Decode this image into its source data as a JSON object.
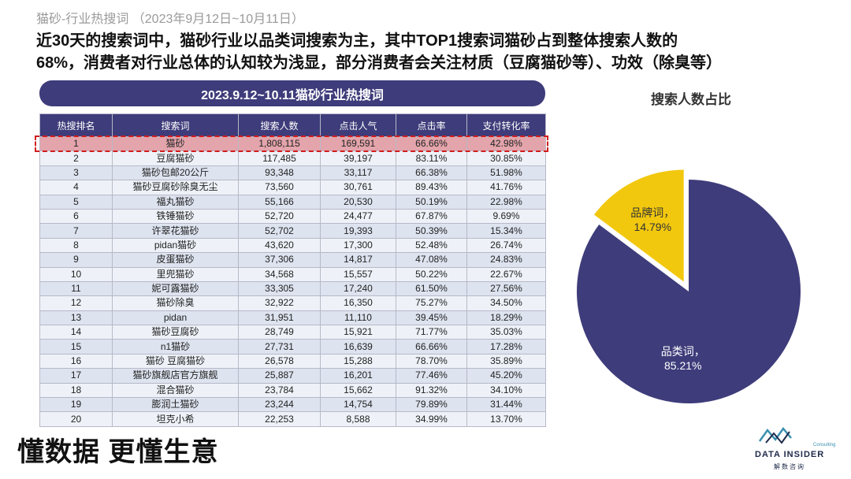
{
  "section_tag": "猫砂-行业热搜词  （2023年9月12日~10月11日）",
  "headline_line1": "近30天的搜索词中，猫砂行业以品类词搜索为主，其中TOP1搜索词猫砂占到整体搜索人数的",
  "headline_line2": "68%，消费者对行业总体的认知较为浅显，部分消费者会关注材质（豆腐猫砂等）、功效（除臭等）",
  "table_title": "2023.9.12~10.11猫砂行业热搜词",
  "pie_title": "搜索人数占比",
  "slogan": "懂数据 更懂生意",
  "logo": {
    "name": "DATA INSIDER",
    "sub": "解数咨询",
    "consulting": "Consulting"
  },
  "colors": {
    "navy": "#3e3c7a",
    "gold": "#f2c80f",
    "highlight": "#d11d1d"
  },
  "chart_data": [
    {
      "type": "table",
      "title": "2023.9.12~10.11猫砂行业热搜词",
      "columns": [
        "热搜排名",
        "搜索词",
        "搜索人数",
        "点击人气",
        "点击率",
        "支付转化率"
      ],
      "rows": [
        [
          "1",
          "猫砂",
          "1,808,115",
          "169,591",
          "66.66%",
          "42.98%"
        ],
        [
          "2",
          "豆腐猫砂",
          "117,485",
          "39,197",
          "83.11%",
          "30.85%"
        ],
        [
          "3",
          "猫砂包邮20公斤",
          "93,348",
          "33,117",
          "66.38%",
          "51.98%"
        ],
        [
          "4",
          "猫砂豆腐砂除臭无尘",
          "73,560",
          "30,761",
          "89.43%",
          "41.76%"
        ],
        [
          "5",
          "福丸猫砂",
          "55,166",
          "20,530",
          "50.19%",
          "22.98%"
        ],
        [
          "6",
          "铁锤猫砂",
          "52,720",
          "24,477",
          "67.87%",
          "9.69%"
        ],
        [
          "7",
          "许翠花猫砂",
          "52,702",
          "19,393",
          "50.39%",
          "15.34%"
        ],
        [
          "8",
          "pidan猫砂",
          "43,620",
          "17,300",
          "52.48%",
          "26.74%"
        ],
        [
          "9",
          "皮蛋猫砂",
          "37,306",
          "14,817",
          "47.08%",
          "24.83%"
        ],
        [
          "10",
          "里兜猫砂",
          "34,568",
          "15,557",
          "50.22%",
          "22.67%"
        ],
        [
          "11",
          "妮可露猫砂",
          "33,305",
          "17,240",
          "61.50%",
          "27.56%"
        ],
        [
          "12",
          "猫砂除臭",
          "32,922",
          "16,350",
          "75.27%",
          "34.50%"
        ],
        [
          "13",
          "pidan",
          "31,951",
          "11,110",
          "39.45%",
          "18.29%"
        ],
        [
          "14",
          "猫砂豆腐砂",
          "28,749",
          "15,921",
          "71.77%",
          "35.03%"
        ],
        [
          "15",
          "n1猫砂",
          "27,731",
          "16,639",
          "66.66%",
          "17.28%"
        ],
        [
          "16",
          "猫砂 豆腐猫砂",
          "26,578",
          "15,288",
          "78.70%",
          "35.89%"
        ],
        [
          "17",
          "猫砂旗舰店官方旗舰",
          "25,887",
          "16,201",
          "77.46%",
          "45.20%"
        ],
        [
          "18",
          "混合猫砂",
          "23,784",
          "15,662",
          "91.32%",
          "34.10%"
        ],
        [
          "19",
          "膨润土猫砂",
          "23,244",
          "14,754",
          "79.89%",
          "31.44%"
        ],
        [
          "20",
          "坦克小希",
          "22,253",
          "8,588",
          "34.99%",
          "13.70%"
        ]
      ],
      "highlighted_row": 1
    },
    {
      "type": "pie",
      "title": "搜索人数占比",
      "slices": [
        {
          "name": "品类词",
          "value": 85.21,
          "label": "85.21%",
          "color": "#3e3c7a",
          "text_color": "#ffffff"
        },
        {
          "name": "品牌词",
          "value": 14.79,
          "label": "14.79%",
          "color": "#f2c80f",
          "text_color": "#333333",
          "exploded": true
        }
      ]
    }
  ]
}
